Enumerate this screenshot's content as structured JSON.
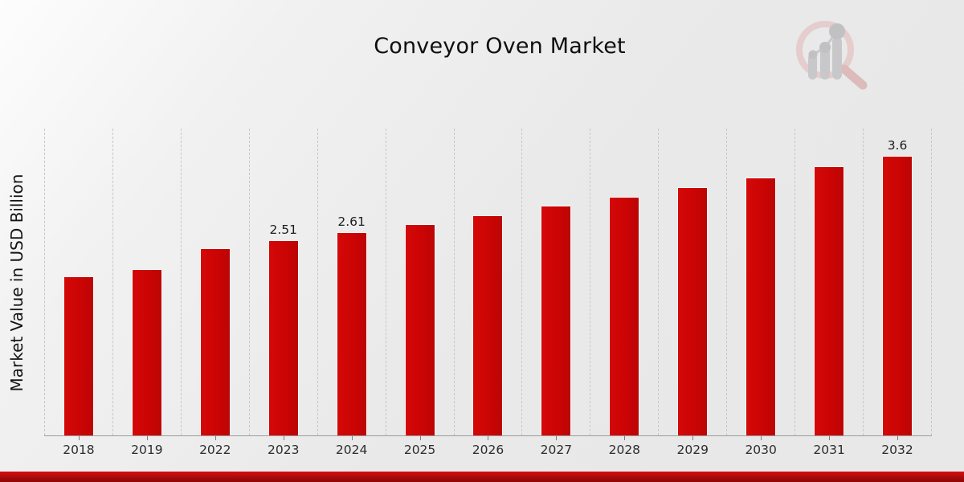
{
  "header": {
    "title": "Conveyor Oven Market"
  },
  "logo": {
    "name": "magnifier-bar-chart-logo",
    "ring_color": "#e5cccc",
    "handle_color": "#ddb9b9",
    "bar_color": "#c7c7ca",
    "dot_color": "#bfbfc3"
  },
  "chart_data": {
    "type": "bar",
    "title": "Conveyor Oven Market",
    "xlabel": "",
    "ylabel": "Market Value in USD Billion",
    "categories": [
      "2018",
      "2019",
      "2022",
      "2023",
      "2024",
      "2025",
      "2026",
      "2027",
      "2028",
      "2029",
      "2030",
      "2031",
      "2032"
    ],
    "values": [
      2.04,
      2.14,
      2.41,
      2.51,
      2.61,
      2.72,
      2.83,
      2.95,
      3.07,
      3.19,
      3.32,
      3.46,
      3.6
    ],
    "data_labels": [
      "",
      "",
      "",
      "2.51",
      "2.61",
      "",
      "",
      "",
      "",
      "",
      "",
      "",
      "3.6"
    ],
    "ylim": [
      0,
      3.96
    ],
    "grid": "vertical-dashed",
    "legend": "none",
    "unit": "USD Billion"
  },
  "colors": {
    "bar": "#cc0404",
    "grid": "#c7c7c7",
    "axis": "#9b9b9b",
    "footer_top": "#cf1111",
    "footer_bottom": "#8e0505",
    "background": "#e9e9e9"
  }
}
